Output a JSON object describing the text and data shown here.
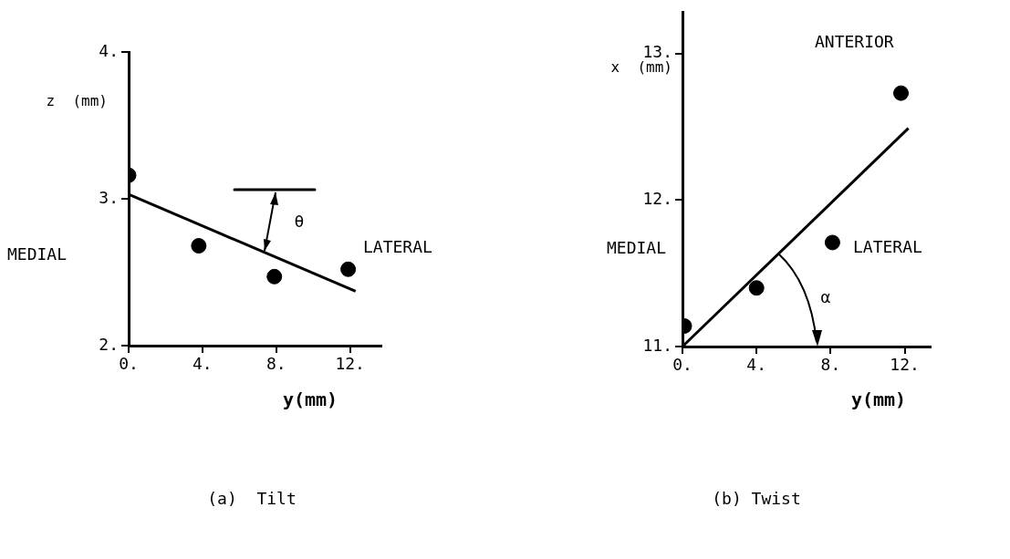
{
  "chart_data": [
    {
      "type": "scatter",
      "title": "(a)  Tilt",
      "xlabel": "y(mm)",
      "ylabel": "z  (mm)",
      "annotations": [
        "MEDIAL",
        "LATERAL",
        "θ"
      ],
      "xlim": [
        0,
        13.7
      ],
      "ylim": [
        2,
        4
      ],
      "xticks": [
        {
          "value": 0,
          "label": "0."
        },
        {
          "value": 4,
          "label": "4."
        },
        {
          "value": 8,
          "label": "8."
        },
        {
          "value": 12,
          "label": "12."
        }
      ],
      "yticks": [
        {
          "value": 2,
          "label": "2."
        },
        {
          "value": 3,
          "label": "3."
        },
        {
          "value": 4,
          "label": "4."
        }
      ],
      "grid": false,
      "legend": false,
      "marker": "circle",
      "series": [
        {
          "type": "scatter",
          "color": "#000000",
          "x": [
            0,
            3.8,
            7.9,
            11.9
          ],
          "values": [
            3.16,
            2.68,
            2.47,
            2.52
          ]
        },
        {
          "type": "line",
          "color": "#000000",
          "marker": "none",
          "x": [
            0,
            12.3
          ],
          "values": [
            3.03,
            2.37
          ]
        }
      ]
    },
    {
      "type": "scatter",
      "title": "(b) Twist",
      "xlabel": "y(mm)",
      "ylabel": "x  (mm)",
      "annotations": [
        "ANTERIOR",
        "MEDIAL",
        "LATERAL",
        "α"
      ],
      "xlim": [
        0,
        13.4
      ],
      "ylim": [
        11,
        13.28
      ],
      "xticks": [
        {
          "value": 0,
          "label": "0."
        },
        {
          "value": 4,
          "label": "4."
        },
        {
          "value": 8,
          "label": "8."
        },
        {
          "value": 12,
          "label": "12."
        }
      ],
      "yticks": [
        {
          "value": 11,
          "label": "11."
        },
        {
          "value": 12,
          "label": "12."
        },
        {
          "value": 13,
          "label": "13."
        }
      ],
      "grid": false,
      "legend": false,
      "marker": "circle",
      "series": [
        {
          "type": "scatter",
          "color": "#000000",
          "x": [
            0.1,
            4.0,
            8.1,
            11.8
          ],
          "values": [
            11.14,
            11.4,
            11.71,
            12.73
          ]
        },
        {
          "type": "line",
          "color": "#000000",
          "marker": "none",
          "x": [
            0,
            12.2
          ],
          "values": [
            11,
            12.49
          ]
        }
      ]
    }
  ]
}
